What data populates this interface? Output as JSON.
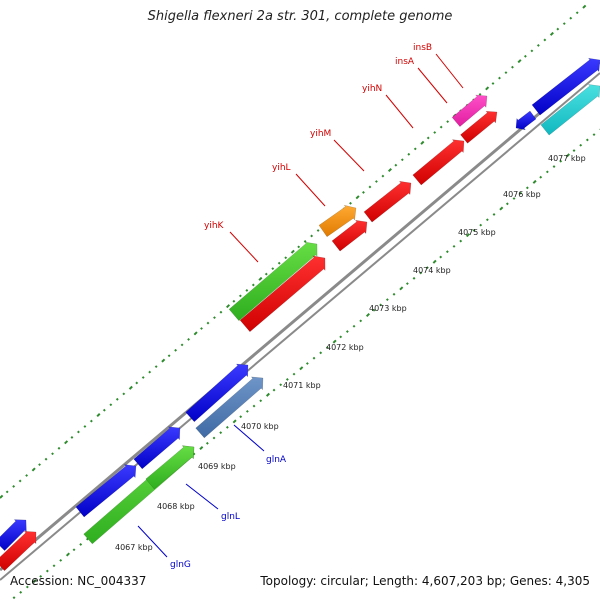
{
  "title": "Shigella flexneri 2a str. 301, complete genome",
  "footer": {
    "accession": "Accession: NC_004337",
    "summary": "Topology: circular; Length: 4,607,203 bp; Genes: 4,305"
  },
  "colors": {
    "backbone": "#8a8a8a",
    "dot_ticks": "#2e8b2e",
    "label_upper": "#d40000",
    "label_lower": "#0000cc",
    "leader_upper": "#d40000",
    "leader_lower": "#0000cc"
  },
  "kbp_ticks": [
    "4067 kbp",
    "4068 kbp",
    "4069 kbp",
    "4070 kbp",
    "4071 kbp",
    "4072 kbp",
    "4073 kbp",
    "4074 kbp",
    "4075 kbp",
    "4076 kbp",
    "4077 kbp"
  ],
  "upper_labels": [
    "yihK",
    "yihL",
    "yihM",
    "yihN",
    "insA",
    "insB"
  ],
  "lower_labels": [
    "glnG",
    "glnL",
    "glnA"
  ],
  "features": [
    {
      "color": "blue"
    },
    {
      "color": "red"
    },
    {
      "color": "blue"
    },
    {
      "color": "green"
    },
    {
      "color": "blue"
    },
    {
      "color": "green"
    },
    {
      "color": "blue"
    },
    {
      "color": "steelblue"
    },
    {
      "color": "green"
    },
    {
      "color": "red"
    },
    {
      "color": "orange"
    },
    {
      "color": "red"
    },
    {
      "color": "red"
    },
    {
      "color": "red"
    },
    {
      "color": "magenta"
    },
    {
      "color": "red"
    },
    {
      "color": "blue"
    },
    {
      "color": "blue"
    },
    {
      "color": "cyan"
    }
  ]
}
